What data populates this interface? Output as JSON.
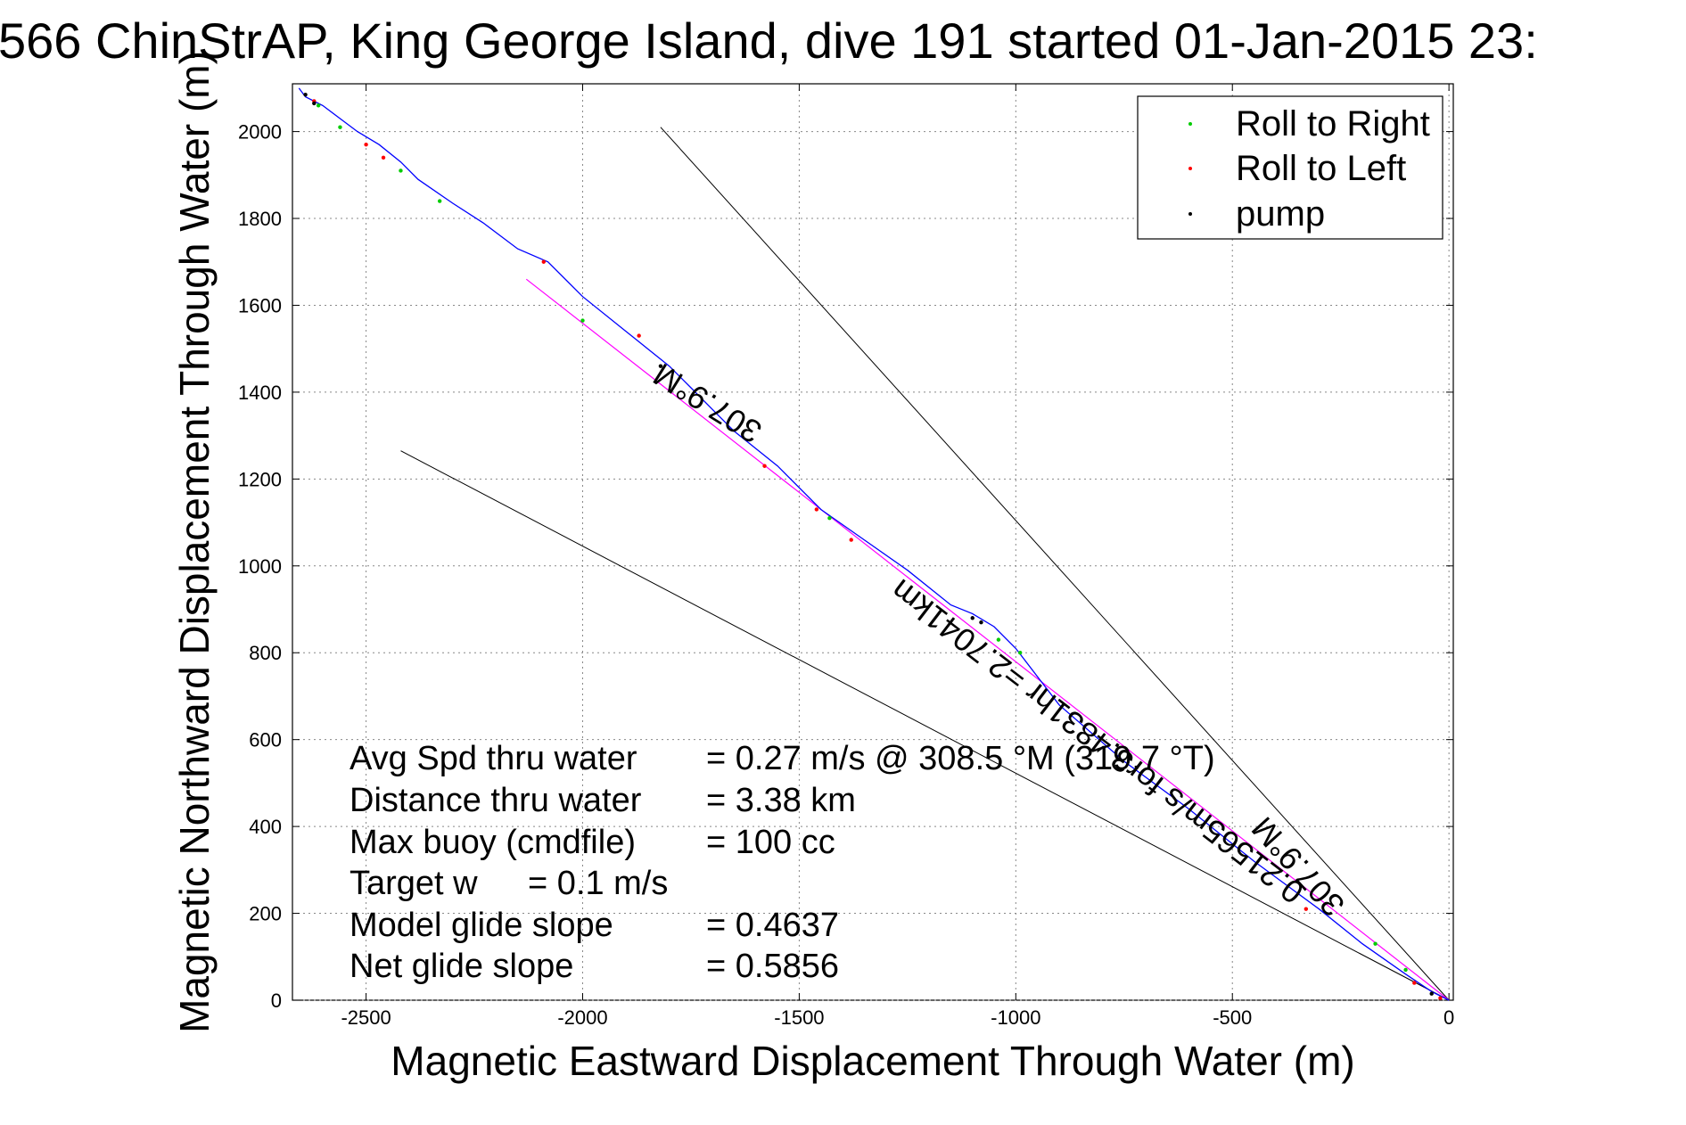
{
  "chart_data": {
    "type": "line",
    "title": "566 ChinStrAP, King George Island, dive 191 started 01-Jan-2015 23:",
    "xlabel": "Magnetic Eastward Displacement Through Water (m)",
    "ylabel": "Magnetic Northward Displacement Through Water (m)",
    "xlim": [
      -2670,
      10
    ],
    "ylim": [
      0,
      2110
    ],
    "xticks": [
      -2500,
      -2000,
      -1500,
      -1000,
      -500,
      0
    ],
    "yticks": [
      0,
      200,
      400,
      600,
      800,
      1000,
      1200,
      1400,
      1600,
      1800,
      2000
    ],
    "grid": true,
    "legend_position": "top-right",
    "colors": {
      "track": "#0000ff",
      "fit_line": "#ff00ff",
      "roll_right": "#00cc00",
      "roll_left": "#ff0000",
      "pump": "#000000",
      "reference_lines": "#000000"
    },
    "legend": [
      {
        "label": "Roll to Right",
        "color": "#00cc00"
      },
      {
        "label": "Roll to Left",
        "color": "#ff0000"
      },
      {
        "label": "pump",
        "color": "#000000"
      }
    ],
    "series": [
      {
        "name": "track",
        "x": [
          0,
          -40,
          -100,
          -200,
          -300,
          -450,
          -600,
          -750,
          -900,
          -1000,
          -1050,
          -1100,
          -1150,
          -1250,
          -1350,
          -1450,
          -1550,
          -1650,
          -1700,
          -1750,
          -1800,
          -1850,
          -1900,
          -2000,
          -2080,
          -2150,
          -2230,
          -2300,
          -2380,
          -2420,
          -2470,
          -2520,
          -2560,
          -2600,
          -2640,
          -2655
        ],
        "y": [
          0,
          20,
          60,
          130,
          210,
          320,
          440,
          550,
          680,
          810,
          860,
          890,
          910,
          990,
          1060,
          1130,
          1230,
          1310,
          1360,
          1410,
          1460,
          1500,
          1540,
          1620,
          1700,
          1730,
          1790,
          1835,
          1890,
          1930,
          1970,
          2000,
          2030,
          2060,
          2080,
          2100
        ]
      },
      {
        "name": "fit",
        "x": [
          0,
          -2130
        ],
        "y": [
          0,
          1660
        ]
      },
      {
        "name": "ref-upper",
        "x": [
          0,
          -1820
        ],
        "y": [
          0,
          2010
        ]
      },
      {
        "name": "ref-lower",
        "x": [
          0,
          -2420
        ],
        "y": [
          0,
          1265
        ]
      }
    ],
    "markers": {
      "roll_right": [
        [
          -2610,
          2060
        ],
        [
          -2560,
          2010
        ],
        [
          -2420,
          1910
        ],
        [
          -2330,
          1840
        ],
        [
          -2000,
          1565
        ],
        [
          -1430,
          1110
        ],
        [
          -1040,
          830
        ],
        [
          -990,
          800
        ],
        [
          -170,
          130
        ],
        [
          -100,
          70
        ]
      ],
      "roll_left": [
        [
          -2620,
          2070
        ],
        [
          -2500,
          1970
        ],
        [
          -2460,
          1940
        ],
        [
          -2090,
          1700
        ],
        [
          -1870,
          1530
        ],
        [
          -1580,
          1230
        ],
        [
          -1460,
          1130
        ],
        [
          -1380,
          1060
        ],
        [
          -330,
          210
        ],
        [
          -80,
          40
        ],
        [
          -20,
          5
        ]
      ],
      "pump": [
        [
          -2640,
          2085
        ],
        [
          -2620,
          2065
        ],
        [
          -1820,
          1460
        ],
        [
          -1100,
          880
        ],
        [
          -1080,
          870
        ],
        [
          -40,
          15
        ]
      ]
    },
    "annotations": {
      "heading_top": "307.9°M",
      "heading_bottom": "307.9°M",
      "current": "0.21565m/s for3.4831hr =2.7041km"
    },
    "stats": [
      {
        "label": "Avg Spd thru water",
        "value": "=  0.27 m/s @ 308.5  °M (319.7  °T)"
      },
      {
        "label": "Distance thru water",
        "value": "=  3.38 km"
      },
      {
        "label": "Max buoy (cmdfile)",
        "value": "= 100 cc"
      },
      {
        "label": "Target w",
        "value": "= 0.1 m/s"
      },
      {
        "label": "Model glide slope",
        "value": "= 0.4637"
      },
      {
        "label": "Net glide slope",
        "value": "= 0.5856"
      }
    ]
  }
}
